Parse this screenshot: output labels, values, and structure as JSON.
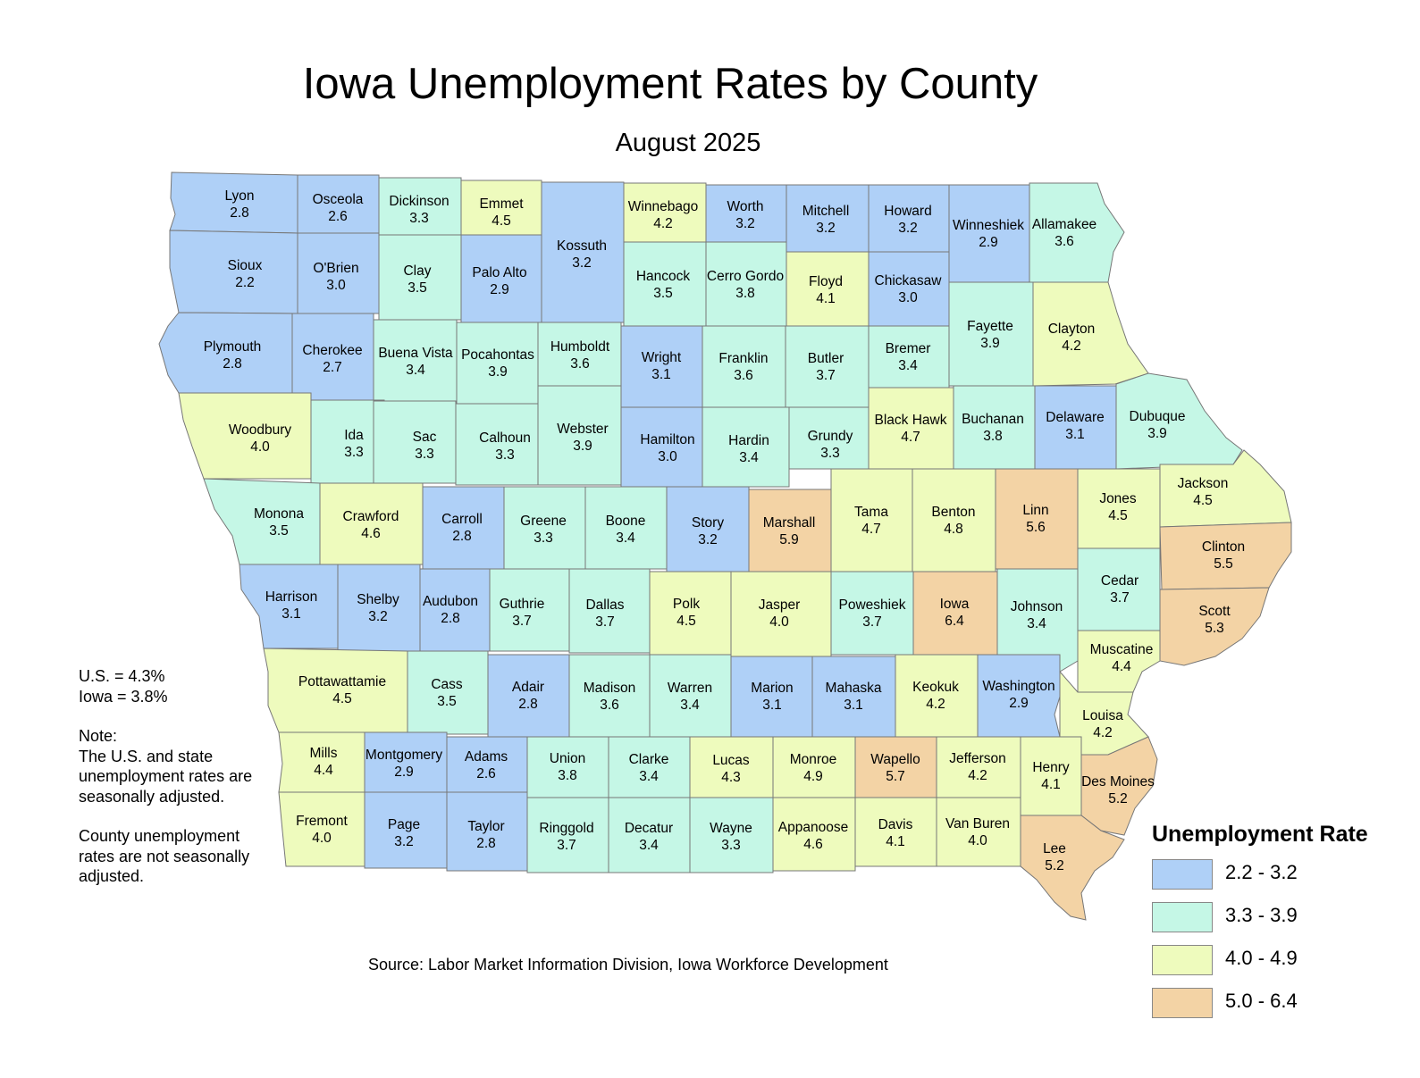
{
  "title": "Iowa Unemployment Rates by County",
  "subtitle": "August 2025",
  "notes": {
    "us_rate": "U.S. = 4.3%",
    "iowa_rate": "Iowa = 3.8%",
    "note_heading": "Note:",
    "note_lines": [
      "The U.S. and state",
      "unemployment rates are",
      "seasonally adjusted."
    ],
    "county_lines": [
      "County unemployment",
      "rates are not seasonally",
      "adjusted."
    ]
  },
  "source": "Source: Labor Market Information Division, Iowa Workforce Development",
  "legend": {
    "title": "Unemployment Rate",
    "classes": [
      {
        "label": "2.2 - 3.2",
        "color": "#afd0f7",
        "min": 2.2,
        "max": 3.2
      },
      {
        "label": "3.3 - 3.9",
        "color": "#c5f7e6",
        "min": 3.3,
        "max": 3.9
      },
      {
        "label": "4.0 - 4.9",
        "color": "#eefbbd",
        "min": 4.0,
        "max": 4.9
      },
      {
        "label": "5.0 - 6.4",
        "color": "#f3d3a5",
        "min": 5.0,
        "max": 6.4
      }
    ]
  },
  "counties": [
    {
      "name": "Lyon",
      "rate": "2.8"
    },
    {
      "name": "Osceola",
      "rate": "2.6"
    },
    {
      "name": "Dickinson",
      "rate": "3.3"
    },
    {
      "name": "Emmet",
      "rate": "4.5"
    },
    {
      "name": "Kossuth",
      "rate": "3.2"
    },
    {
      "name": "Winnebago",
      "rate": "4.2"
    },
    {
      "name": "Worth",
      "rate": "3.2"
    },
    {
      "name": "Mitchell",
      "rate": "3.2"
    },
    {
      "name": "Howard",
      "rate": "3.2"
    },
    {
      "name": "Winneshiek",
      "rate": "2.9"
    },
    {
      "name": "Allamakee",
      "rate": "3.6"
    },
    {
      "name": "Sioux",
      "rate": "2.2"
    },
    {
      "name": "O'Brien",
      "rate": "3.0"
    },
    {
      "name": "Clay",
      "rate": "3.5"
    },
    {
      "name": "Palo Alto",
      "rate": "2.9"
    },
    {
      "name": "Hancock",
      "rate": "3.5"
    },
    {
      "name": "Cerro Gordo",
      "rate": "3.8"
    },
    {
      "name": "Floyd",
      "rate": "4.1"
    },
    {
      "name": "Chickasaw",
      "rate": "3.0"
    },
    {
      "name": "Fayette",
      "rate": "3.9"
    },
    {
      "name": "Clayton",
      "rate": "4.2"
    },
    {
      "name": "Plymouth",
      "rate": "2.8"
    },
    {
      "name": "Cherokee",
      "rate": "2.7"
    },
    {
      "name": "Buena Vista",
      "rate": "3.4"
    },
    {
      "name": "Pocahontas",
      "rate": "3.9"
    },
    {
      "name": "Humboldt",
      "rate": "3.6"
    },
    {
      "name": "Wright",
      "rate": "3.1"
    },
    {
      "name": "Franklin",
      "rate": "3.6"
    },
    {
      "name": "Butler",
      "rate": "3.7"
    },
    {
      "name": "Bremer",
      "rate": "3.4"
    },
    {
      "name": "Woodbury",
      "rate": "4.0"
    },
    {
      "name": "Ida",
      "rate": "3.3"
    },
    {
      "name": "Sac",
      "rate": "3.3"
    },
    {
      "name": "Calhoun",
      "rate": "3.3"
    },
    {
      "name": "Webster",
      "rate": "3.9"
    },
    {
      "name": "Hamilton",
      "rate": "3.0"
    },
    {
      "name": "Hardin",
      "rate": "3.4"
    },
    {
      "name": "Grundy",
      "rate": "3.3"
    },
    {
      "name": "Black Hawk",
      "rate": "4.7"
    },
    {
      "name": "Buchanan",
      "rate": "3.8"
    },
    {
      "name": "Delaware",
      "rate": "3.1"
    },
    {
      "name": "Dubuque",
      "rate": "3.9"
    },
    {
      "name": "Monona",
      "rate": "3.5"
    },
    {
      "name": "Crawford",
      "rate": "4.6"
    },
    {
      "name": "Carroll",
      "rate": "2.8"
    },
    {
      "name": "Greene",
      "rate": "3.3"
    },
    {
      "name": "Boone",
      "rate": "3.4"
    },
    {
      "name": "Story",
      "rate": "3.2"
    },
    {
      "name": "Marshall",
      "rate": "5.9"
    },
    {
      "name": "Tama",
      "rate": "4.7"
    },
    {
      "name": "Benton",
      "rate": "4.8"
    },
    {
      "name": "Linn",
      "rate": "5.6"
    },
    {
      "name": "Jones",
      "rate": "4.5"
    },
    {
      "name": "Jackson",
      "rate": "4.5"
    },
    {
      "name": "Clinton",
      "rate": "5.5"
    },
    {
      "name": "Harrison",
      "rate": "3.1"
    },
    {
      "name": "Shelby",
      "rate": "3.2"
    },
    {
      "name": "Audubon",
      "rate": "2.8"
    },
    {
      "name": "Guthrie",
      "rate": "3.7"
    },
    {
      "name": "Dallas",
      "rate": "3.7"
    },
    {
      "name": "Polk",
      "rate": "4.5"
    },
    {
      "name": "Jasper",
      "rate": "4.0"
    },
    {
      "name": "Poweshiek",
      "rate": "3.7"
    },
    {
      "name": "Iowa",
      "rate": "6.4"
    },
    {
      "name": "Johnson",
      "rate": "3.4"
    },
    {
      "name": "Cedar",
      "rate": "3.7"
    },
    {
      "name": "Scott",
      "rate": "5.3"
    },
    {
      "name": "Muscatine",
      "rate": "4.4"
    },
    {
      "name": "Pottawattamie",
      "rate": "4.5"
    },
    {
      "name": "Cass",
      "rate": "3.5"
    },
    {
      "name": "Adair",
      "rate": "2.8"
    },
    {
      "name": "Madison",
      "rate": "3.6"
    },
    {
      "name": "Warren",
      "rate": "3.4"
    },
    {
      "name": "Marion",
      "rate": "3.1"
    },
    {
      "name": "Mahaska",
      "rate": "3.1"
    },
    {
      "name": "Keokuk",
      "rate": "4.2"
    },
    {
      "name": "Washington",
      "rate": "2.9"
    },
    {
      "name": "Louisa",
      "rate": "4.2"
    },
    {
      "name": "Mills",
      "rate": "4.4"
    },
    {
      "name": "Montgomery",
      "rate": "2.9"
    },
    {
      "name": "Adams",
      "rate": "2.6"
    },
    {
      "name": "Union",
      "rate": "3.8"
    },
    {
      "name": "Clarke",
      "rate": "3.4"
    },
    {
      "name": "Lucas",
      "rate": "4.3"
    },
    {
      "name": "Monroe",
      "rate": "4.9"
    },
    {
      "name": "Wapello",
      "rate": "5.7"
    },
    {
      "name": "Jefferson",
      "rate": "4.2"
    },
    {
      "name": "Henry",
      "rate": "4.1"
    },
    {
      "name": "Des Moines",
      "rate": "5.2"
    },
    {
      "name": "Fremont",
      "rate": "4.0"
    },
    {
      "name": "Page",
      "rate": "3.2"
    },
    {
      "name": "Taylor",
      "rate": "2.8"
    },
    {
      "name": "Ringgold",
      "rate": "3.7"
    },
    {
      "name": "Decatur",
      "rate": "3.4"
    },
    {
      "name": "Wayne",
      "rate": "3.3"
    },
    {
      "name": "Appanoose",
      "rate": "4.6"
    },
    {
      "name": "Davis",
      "rate": "4.1"
    },
    {
      "name": "Van Buren",
      "rate": "4.0"
    },
    {
      "name": "Lee",
      "rate": "5.2"
    }
  ]
}
